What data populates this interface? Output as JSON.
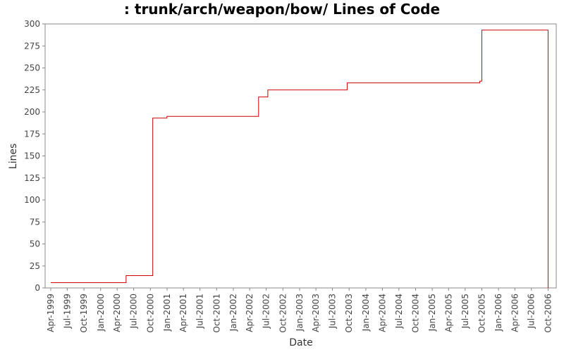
{
  "chart_data": {
    "type": "line",
    "title": ": trunk/arch/weapon/bow/ Lines of Code",
    "xlabel": "Date",
    "ylabel": "Lines",
    "ylim": [
      0,
      300
    ],
    "yticks": [
      0,
      25,
      50,
      75,
      100,
      125,
      150,
      175,
      200,
      225,
      250,
      275,
      300
    ],
    "xlim": [
      "1999-03-01",
      "2006-11-15"
    ],
    "xticks": [
      {
        "date": "1999-04-01",
        "label": "Apr-1999"
      },
      {
        "date": "1999-07-01",
        "label": "Jul-1999"
      },
      {
        "date": "1999-10-01",
        "label": "Oct-1999"
      },
      {
        "date": "2000-01-01",
        "label": "Jan-2000"
      },
      {
        "date": "2000-04-01",
        "label": "Apr-2000"
      },
      {
        "date": "2000-07-01",
        "label": "Jul-2000"
      },
      {
        "date": "2000-10-01",
        "label": "Oct-2000"
      },
      {
        "date": "2001-01-01",
        "label": "Jan-2001"
      },
      {
        "date": "2001-04-01",
        "label": "Apr-2001"
      },
      {
        "date": "2001-07-01",
        "label": "Jul-2001"
      },
      {
        "date": "2001-10-01",
        "label": "Oct-2001"
      },
      {
        "date": "2002-01-01",
        "label": "Jan-2002"
      },
      {
        "date": "2002-04-01",
        "label": "Apr-2002"
      },
      {
        "date": "2002-07-01",
        "label": "Jul-2002"
      },
      {
        "date": "2002-10-01",
        "label": "Oct-2002"
      },
      {
        "date": "2003-01-01",
        "label": "Jan-2003"
      },
      {
        "date": "2003-04-01",
        "label": "Apr-2003"
      },
      {
        "date": "2003-07-01",
        "label": "Jul-2003"
      },
      {
        "date": "2003-10-01",
        "label": "Oct-2003"
      },
      {
        "date": "2004-01-01",
        "label": "Jan-2004"
      },
      {
        "date": "2004-04-01",
        "label": "Apr-2004"
      },
      {
        "date": "2004-07-01",
        "label": "Jul-2004"
      },
      {
        "date": "2004-10-01",
        "label": "Oct-2004"
      },
      {
        "date": "2005-01-01",
        "label": "Jan-2005"
      },
      {
        "date": "2005-04-01",
        "label": "Apr-2005"
      },
      {
        "date": "2005-07-01",
        "label": "Jul-2005"
      },
      {
        "date": "2005-10-01",
        "label": "Oct-2005"
      },
      {
        "date": "2006-01-01",
        "label": "Jan-2006"
      },
      {
        "date": "2006-04-01",
        "label": "Apr-2006"
      },
      {
        "date": "2006-07-01",
        "label": "Jul-2006"
      },
      {
        "date": "2006-10-01",
        "label": "Oct-2006"
      }
    ],
    "grid": false,
    "legend": "none",
    "color": "#cc0000",
    "step": "post",
    "points": [
      {
        "x": "1999-04-01",
        "y": 6
      },
      {
        "x": "2000-05-20",
        "y": 14
      },
      {
        "x": "2000-10-14",
        "y": 193
      },
      {
        "x": "2000-12-31",
        "y": 195
      },
      {
        "x": "2002-05-20",
        "y": 217
      },
      {
        "x": "2002-07-10",
        "y": 225
      },
      {
        "x": "2003-09-20",
        "y": 233
      },
      {
        "x": "2005-09-20",
        "y": 235
      },
      {
        "x": "2005-10-01",
        "y": 293
      },
      {
        "x": "2006-10-01",
        "y": 0
      }
    ]
  }
}
